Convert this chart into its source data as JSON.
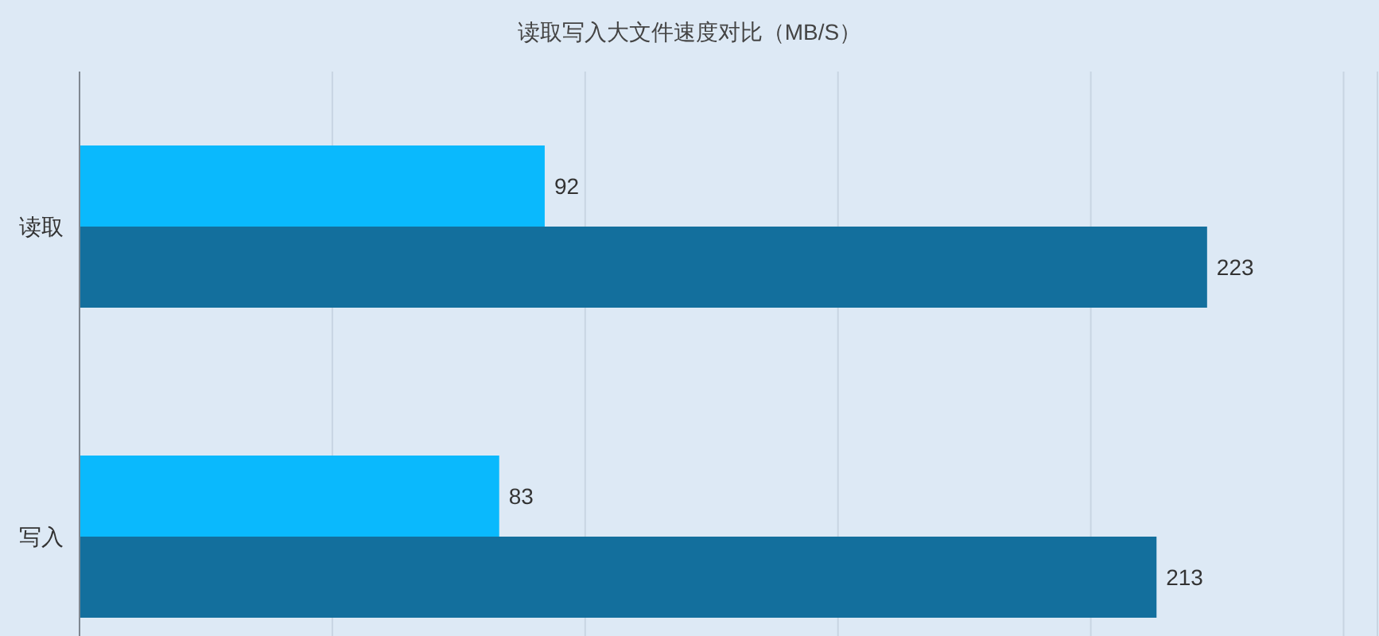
{
  "chart_data": {
    "type": "bar",
    "orientation": "horizontal",
    "title": "读取写入大文件速度对比（MB/S）",
    "categories": [
      "读取",
      "写入"
    ],
    "series": [
      {
        "color": "#0ab9fd",
        "values": [
          92,
          83
        ]
      },
      {
        "color": "#136f9d",
        "values": [
          223,
          213
        ]
      }
    ],
    "xlim": [
      0,
      257
    ],
    "xticks": [
      {
        "value": 0,
        "label": null
      },
      {
        "value": 50,
        "label": null
      },
      {
        "value": 100,
        "label": null
      },
      {
        "value": 150,
        "label": null
      },
      {
        "value": 200,
        "label": null
      },
      {
        "value": 250,
        "label": null
      }
    ],
    "grid": "x",
    "data_labels": true,
    "tick_labels": "y"
  }
}
